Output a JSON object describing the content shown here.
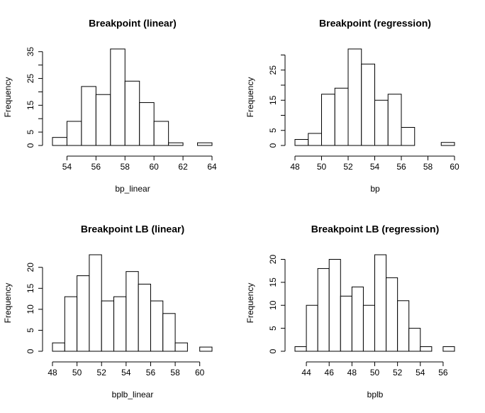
{
  "chart_data": [
    {
      "type": "histogram",
      "title": "Breakpoint (linear)",
      "xlabel": "bp_linear",
      "ylabel": "Frequency",
      "bins": [
        53,
        54,
        55,
        56,
        57,
        58,
        59,
        60,
        61,
        62,
        63,
        64
      ],
      "values": [
        3,
        9,
        22,
        19,
        36,
        24,
        16,
        9,
        1,
        0,
        1
      ],
      "color": "#ffffff",
      "xlim": [
        53,
        64
      ],
      "xticks": [
        54,
        56,
        58,
        60,
        62,
        64
      ],
      "ylim": [
        0,
        36
      ],
      "yticks": [
        0,
        5,
        15,
        25,
        35
      ],
      "yticks_minor": [
        10,
        20,
        30
      ]
    },
    {
      "type": "histogram",
      "title": "Breakpoint (regression)",
      "xlabel": "bp",
      "ylabel": "Frequency",
      "bins": [
        48,
        49,
        50,
        51,
        52,
        53,
        54,
        55,
        56,
        57,
        58,
        59,
        60
      ],
      "values": [
        2,
        4,
        17,
        19,
        32,
        27,
        15,
        17,
        6,
        0,
        0,
        1
      ],
      "color": "#ffffff",
      "xlim": [
        48,
        60
      ],
      "xticks": [
        48,
        50,
        52,
        54,
        56,
        58,
        60
      ],
      "ylim": [
        0,
        32
      ],
      "yticks": [
        0,
        5,
        15,
        25
      ],
      "yticks_minor": [
        10,
        20,
        30
      ]
    },
    {
      "type": "histogram",
      "title": "Breakpoint LB (linear)",
      "xlabel": "bplb_linear",
      "ylabel": "Frequency",
      "bins": [
        48,
        49,
        50,
        51,
        52,
        53,
        54,
        55,
        56,
        57,
        58,
        59,
        60,
        61
      ],
      "values": [
        2,
        13,
        18,
        23,
        12,
        13,
        19,
        16,
        12,
        9,
        2,
        0,
        1
      ],
      "color": "#ffffff",
      "xlim": [
        48,
        61
      ],
      "xticks": [
        48,
        50,
        52,
        54,
        56,
        58,
        60
      ],
      "ylim": [
        0,
        23
      ],
      "yticks": [
        0,
        5,
        10,
        15,
        20
      ]
    },
    {
      "type": "histogram",
      "title": "Breakpoint LB (regression)",
      "xlabel": "bplb",
      "ylabel": "Frequency",
      "bins": [
        43,
        44,
        45,
        46,
        47,
        48,
        49,
        50,
        51,
        52,
        53,
        54,
        55,
        56,
        57
      ],
      "values": [
        1,
        10,
        18,
        20,
        12,
        14,
        10,
        21,
        16,
        11,
        5,
        1,
        0,
        1
      ],
      "color": "#ffffff",
      "xlim": [
        43,
        57
      ],
      "xticks": [
        44,
        46,
        48,
        50,
        52,
        54,
        56
      ],
      "ylim": [
        0,
        21
      ],
      "yticks": [
        0,
        5,
        10,
        15,
        20
      ]
    }
  ]
}
